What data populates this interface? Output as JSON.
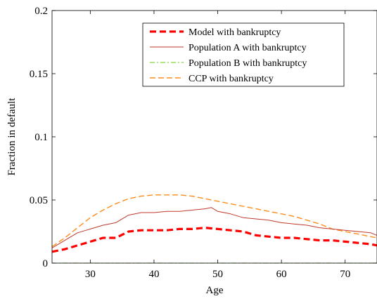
{
  "chart_data": {
    "type": "line",
    "xlabel": "Age",
    "ylabel": "Fraction in default",
    "xlim": [
      24,
      75
    ],
    "ylim": [
      0,
      0.2
    ],
    "xticks": [
      "30",
      "40",
      "50",
      "60",
      "70"
    ],
    "yticks": [
      "0",
      "0.05",
      "0.1",
      "0.15",
      "0.2"
    ],
    "legend_position": "top-right",
    "series": [
      {
        "name": "Model with bankruptcy",
        "color": "#ff0000",
        "style": "dashed-thick",
        "x": [
          24,
          26,
          28,
          30,
          32,
          34,
          36,
          38,
          40,
          42,
          44,
          46,
          48,
          50,
          52,
          54,
          56,
          58,
          60,
          62,
          64,
          66,
          68,
          70,
          72,
          74,
          75
        ],
        "y": [
          0.009,
          0.011,
          0.014,
          0.017,
          0.02,
          0.02,
          0.025,
          0.026,
          0.026,
          0.026,
          0.027,
          0.027,
          0.028,
          0.027,
          0.026,
          0.025,
          0.022,
          0.021,
          0.02,
          0.02,
          0.019,
          0.018,
          0.018,
          0.017,
          0.016,
          0.015,
          0.014
        ]
      },
      {
        "name": "Population A with bankruptcy",
        "color": "#c0392b",
        "style": "solid-thin",
        "x": [
          24,
          26,
          28,
          30,
          32,
          34,
          36,
          38,
          40,
          42,
          44,
          46,
          48,
          49,
          50,
          52,
          54,
          56,
          58,
          60,
          62,
          64,
          66,
          68,
          70,
          72,
          74,
          75
        ],
        "y": [
          0.012,
          0.018,
          0.024,
          0.027,
          0.03,
          0.032,
          0.038,
          0.04,
          0.04,
          0.041,
          0.041,
          0.042,
          0.043,
          0.044,
          0.041,
          0.039,
          0.036,
          0.035,
          0.034,
          0.032,
          0.031,
          0.03,
          0.028,
          0.027,
          0.026,
          0.025,
          0.024,
          0.022
        ]
      },
      {
        "name": "Population B with bankruptcy",
        "color": "#66cc00",
        "style": "dashdot",
        "x": [
          24,
          75
        ],
        "y": [
          0.0,
          0.0
        ]
      },
      {
        "name": "CCP with bankruptcy",
        "color": "#ff8c1a",
        "style": "dashed",
        "x": [
          24,
          26,
          28,
          30,
          32,
          34,
          36,
          38,
          40,
          42,
          44,
          46,
          48,
          50,
          52,
          54,
          56,
          58,
          60,
          62,
          64,
          66,
          68,
          70,
          72,
          74,
          75
        ],
        "y": [
          0.013,
          0.02,
          0.028,
          0.036,
          0.042,
          0.047,
          0.051,
          0.053,
          0.054,
          0.054,
          0.054,
          0.053,
          0.051,
          0.049,
          0.047,
          0.045,
          0.043,
          0.041,
          0.039,
          0.037,
          0.034,
          0.031,
          0.027,
          0.025,
          0.023,
          0.021,
          0.02
        ]
      }
    ]
  }
}
